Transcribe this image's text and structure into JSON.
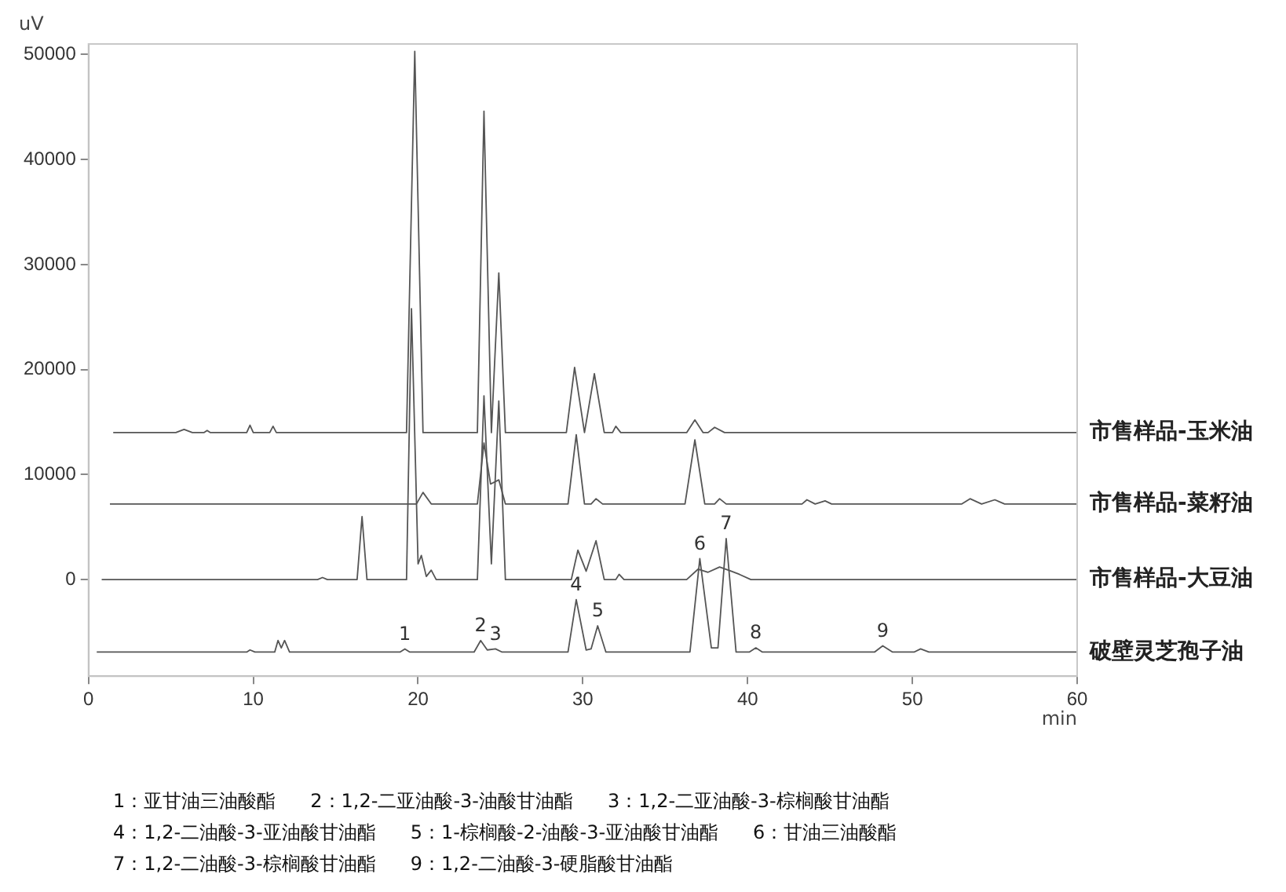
{
  "chart_data": {
    "type": "line",
    "xlabel": "min",
    "ylabel": "uV",
    "xlim": [
      0,
      60
    ],
    "xticks": [
      0,
      10,
      20,
      30,
      40,
      50,
      60
    ],
    "ylim": [
      -9200,
      51000
    ],
    "yticks": [
      0,
      10000,
      20000,
      30000,
      40000,
      50000
    ],
    "grid": false,
    "legend": false,
    "marker": "none",
    "line_style": "solid",
    "series": [
      {
        "name": "市售样品-玉米油",
        "color": "#555555",
        "x": [
          1.5,
          5.3,
          5.8,
          6.3,
          7.0,
          7.2,
          7.4,
          9.6,
          9.8,
          10.0,
          11.0,
          11.2,
          11.4,
          19.3,
          19.8,
          20.3,
          23.6,
          24.0,
          24.45,
          24.9,
          25.3,
          29.0,
          29.5,
          30.1,
          30.7,
          31.3,
          31.8,
          32.0,
          32.3,
          36.3,
          36.8,
          37.3,
          37.6,
          38.0,
          38.6,
          60
        ],
        "values": [
          14000,
          14000,
          14300,
          14000,
          14000,
          14200,
          14000,
          14000,
          14700,
          14000,
          14000,
          14600,
          14000,
          14000,
          50300,
          14000,
          14000,
          44600,
          14000,
          29200,
          14000,
          14000,
          20200,
          14000,
          19600,
          14000,
          14000,
          14600,
          14000,
          14000,
          15200,
          14000,
          14000,
          14500,
          14000,
          14000
        ]
      },
      {
        "name": "市售样品-菜籽油",
        "color": "#555555",
        "x": [
          1.3,
          19.9,
          20.3,
          20.8,
          23.6,
          24.0,
          24.4,
          24.9,
          25.3,
          29.1,
          29.6,
          30.1,
          30.5,
          30.8,
          31.2,
          36.2,
          36.8,
          37.4,
          38.0,
          38.3,
          38.7,
          43.3,
          43.6,
          44.1,
          44.7,
          45.1,
          53.0,
          53.5,
          54.2,
          55.0,
          55.6,
          60
        ],
        "values": [
          7200,
          7200,
          8300,
          7200,
          7200,
          13000,
          9100,
          9500,
          7200,
          7200,
          13800,
          7200,
          7200,
          7700,
          7200,
          7200,
          13300,
          7200,
          7200,
          7700,
          7200,
          7200,
          7600,
          7200,
          7500,
          7200,
          7200,
          7700,
          7200,
          7600,
          7200,
          7200
        ]
      },
      {
        "name": "市售样品-大豆油",
        "color": "#555555",
        "x": [
          0.8,
          13.9,
          14.2,
          14.5,
          16.3,
          16.6,
          16.9,
          19.3,
          19.6,
          20.0,
          20.2,
          20.5,
          20.8,
          21.1,
          23.6,
          24.0,
          24.45,
          24.9,
          25.3,
          29.3,
          29.7,
          30.2,
          30.8,
          31.3,
          32.0,
          32.2,
          32.5,
          36.3,
          37.0,
          37.6,
          38.3,
          39.0,
          39.5,
          40.2,
          60
        ],
        "values": [
          0,
          0,
          200,
          0,
          0,
          6000,
          0,
          0,
          25800,
          1500,
          2300,
          300,
          900,
          0,
          0,
          17500,
          1500,
          17000,
          0,
          0,
          2800,
          800,
          3700,
          0,
          0,
          500,
          0,
          0,
          1000,
          700,
          1200,
          800,
          500,
          0,
          0
        ]
      },
      {
        "name": "破壁灵芝孢子油",
        "color": "#555555",
        "x": [
          0.5,
          9.6,
          9.8,
          10.1,
          11.3,
          11.5,
          11.7,
          11.9,
          12.2,
          18.9,
          19.2,
          19.5,
          23.4,
          23.8,
          24.2,
          24.7,
          25.1,
          29.1,
          29.6,
          30.2,
          30.5,
          30.9,
          31.4,
          36.5,
          37.1,
          37.8,
          38.2,
          38.7,
          39.3,
          40.1,
          40.5,
          40.9,
          47.7,
          48.2,
          48.8,
          50.1,
          50.5,
          51.0,
          60
        ],
        "values": [
          -6900,
          -6900,
          -6700,
          -6900,
          -6900,
          -5800,
          -6500,
          -5800,
          -6900,
          -6900,
          -6600,
          -6900,
          -6900,
          -5800,
          -6700,
          -6600,
          -6900,
          -6900,
          -1900,
          -6700,
          -6600,
          -4400,
          -6900,
          -6900,
          2000,
          -6500,
          -6500,
          3900,
          -6900,
          -6900,
          -6500,
          -6900,
          -6900,
          -6300,
          -6900,
          -6900,
          -6600,
          -6900,
          -6900
        ]
      }
    ],
    "annotations": [
      {
        "text": "1",
        "x": 19.2,
        "y": -6600
      },
      {
        "text": "2",
        "x": 23.8,
        "y": -5800
      },
      {
        "text": "3",
        "x": 24.7,
        "y": -6600
      },
      {
        "text": "4",
        "x": 29.6,
        "y": -1900
      },
      {
        "text": "5",
        "x": 30.9,
        "y": -4400
      },
      {
        "text": "6",
        "x": 37.1,
        "y": 2000
      },
      {
        "text": "7",
        "x": 38.7,
        "y": 3900
      },
      {
        "text": "8",
        "x": 40.5,
        "y": -6500
      },
      {
        "text": "9",
        "x": 48.2,
        "y": -6300
      },
      "1：亚甘油三油酸酯",
      "2：1,2-二亚油酸-3-油酸甘油酯",
      "3：1,2-二亚油酸-3-棕榈酸甘油酯",
      "4：1,2-二油酸-3-亚油酸甘油酯",
      "5：1-棕榈酸-2-油酸-3-亚油酸甘油酯",
      "6：甘油三油酸酯",
      "7：1,2-二油酸-3-棕榈酸甘油酯",
      "9：1,2-二油酸-3-硬脂酸甘油酯"
    ]
  }
}
